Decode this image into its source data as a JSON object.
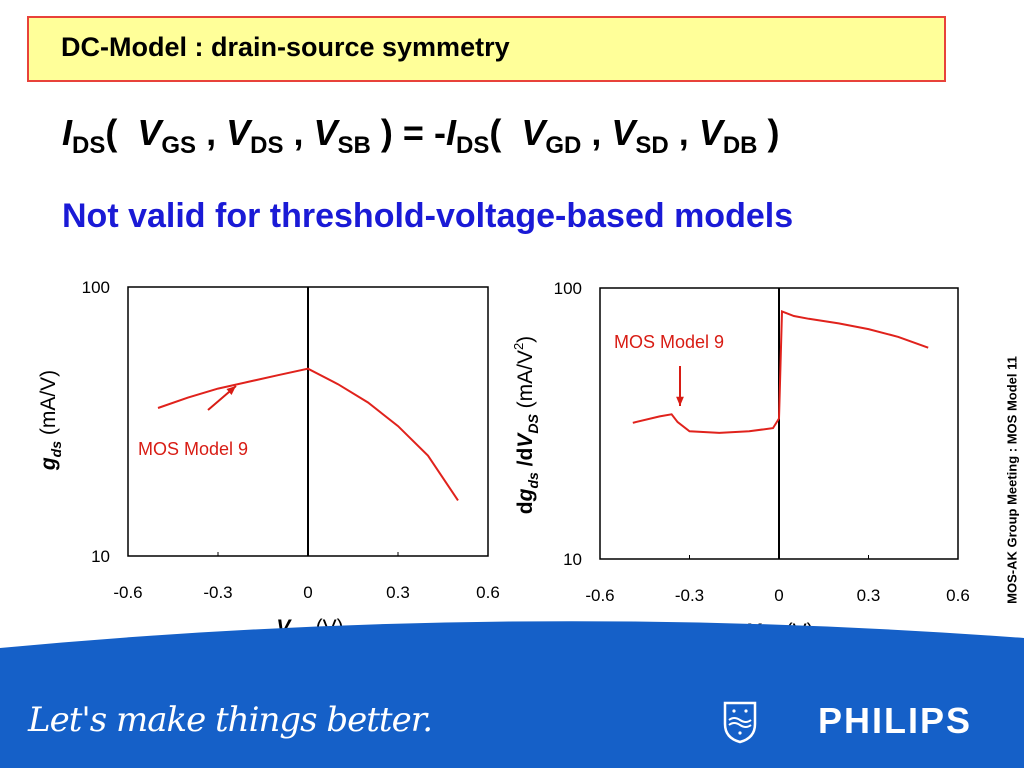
{
  "title": "DC-Model : drain-source symmetry",
  "equation": {
    "lhs_I": "I",
    "lhs_I_sub": "DS",
    "open": "(",
    "a1": "V",
    "a1_sub": "GS",
    "a2": "V",
    "a2_sub": "DS",
    "a3": "V",
    "a3_sub": "SB",
    "close": ")",
    "equals": "=",
    "minus": "-",
    "rhs_I": "I",
    "rhs_I_sub": "DS",
    "b1": "V",
    "b1_sub": "GD",
    "b2": "V",
    "b2_sub": "SD",
    "b3": "V",
    "b3_sub": "DB",
    "comma": ","
  },
  "note": "Not valid for threshold-voltage-based models",
  "side_text": "MOS-AK Group Meeting : MOS Model 11",
  "footer": {
    "slogan": "Let's make things better.",
    "brand": "PHILIPS",
    "background": "#1560c8"
  },
  "chart_data": [
    {
      "type": "line",
      "xlabel_main": "V",
      "xlabel_sub": "DS",
      "xlabel_unit": "(V)",
      "ylabel_main": "g",
      "ylabel_sub": "ds",
      "ylabel_unit": "(mA/V)",
      "ylabel_prefix": "",
      "ylabel_middle": "",
      "yscale": "log",
      "xlim": [
        -0.6,
        0.6
      ],
      "ylim": [
        10,
        100
      ],
      "xticks": [
        "-0.6",
        "-0.3",
        "0",
        "0.3",
        "0.6"
      ],
      "yticks": [
        "100",
        "10"
      ],
      "annotation": "MOS Model 9",
      "line_color": "#e0221c",
      "series": [
        {
          "x": [
            -0.5,
            -0.4,
            -0.3,
            -0.2,
            -0.1,
            0.0,
            0.1,
            0.2,
            0.3,
            0.4,
            0.5
          ],
          "values": [
            35.5,
            38.8,
            41.9,
            44.4,
            47.0,
            49.7,
            43.5,
            37.2,
            30.4,
            23.6,
            16.1
          ]
        }
      ]
    },
    {
      "type": "line",
      "xlabel_main": "V",
      "xlabel_sub": "DS",
      "xlabel_unit": "(V)",
      "ylabel_prefix": "d",
      "ylabel_main": "g",
      "ylabel_sub": "ds",
      "ylabel_middle": "/d",
      "ylabel_main2": "V",
      "ylabel_sub2": "DS",
      "ylabel_unit": "(mA/V",
      "ylabel_unit_sup": "2",
      "ylabel_unit_close": ")",
      "yscale": "log",
      "xlim": [
        -0.6,
        0.6
      ],
      "ylim": [
        10,
        100
      ],
      "xticks": [
        "-0.6",
        "-0.3",
        "0",
        "0.3",
        "0.6"
      ],
      "yticks": [
        "100",
        "10"
      ],
      "annotation": "MOS Model 9",
      "line_color": "#e0221c",
      "series": [
        {
          "x": [
            -0.49,
            -0.4,
            -0.36,
            -0.34,
            -0.3,
            -0.2,
            -0.1,
            -0.02,
            0.0,
            0.01,
            0.05,
            0.1,
            0.2,
            0.3,
            0.4,
            0.5
          ],
          "values": [
            31.8,
            33.6,
            34.2,
            32.0,
            29.6,
            29.2,
            29.6,
            30.4,
            33.0,
            82.0,
            78.8,
            77.0,
            74.0,
            70.5,
            66.0,
            60.2
          ]
        }
      ]
    }
  ]
}
